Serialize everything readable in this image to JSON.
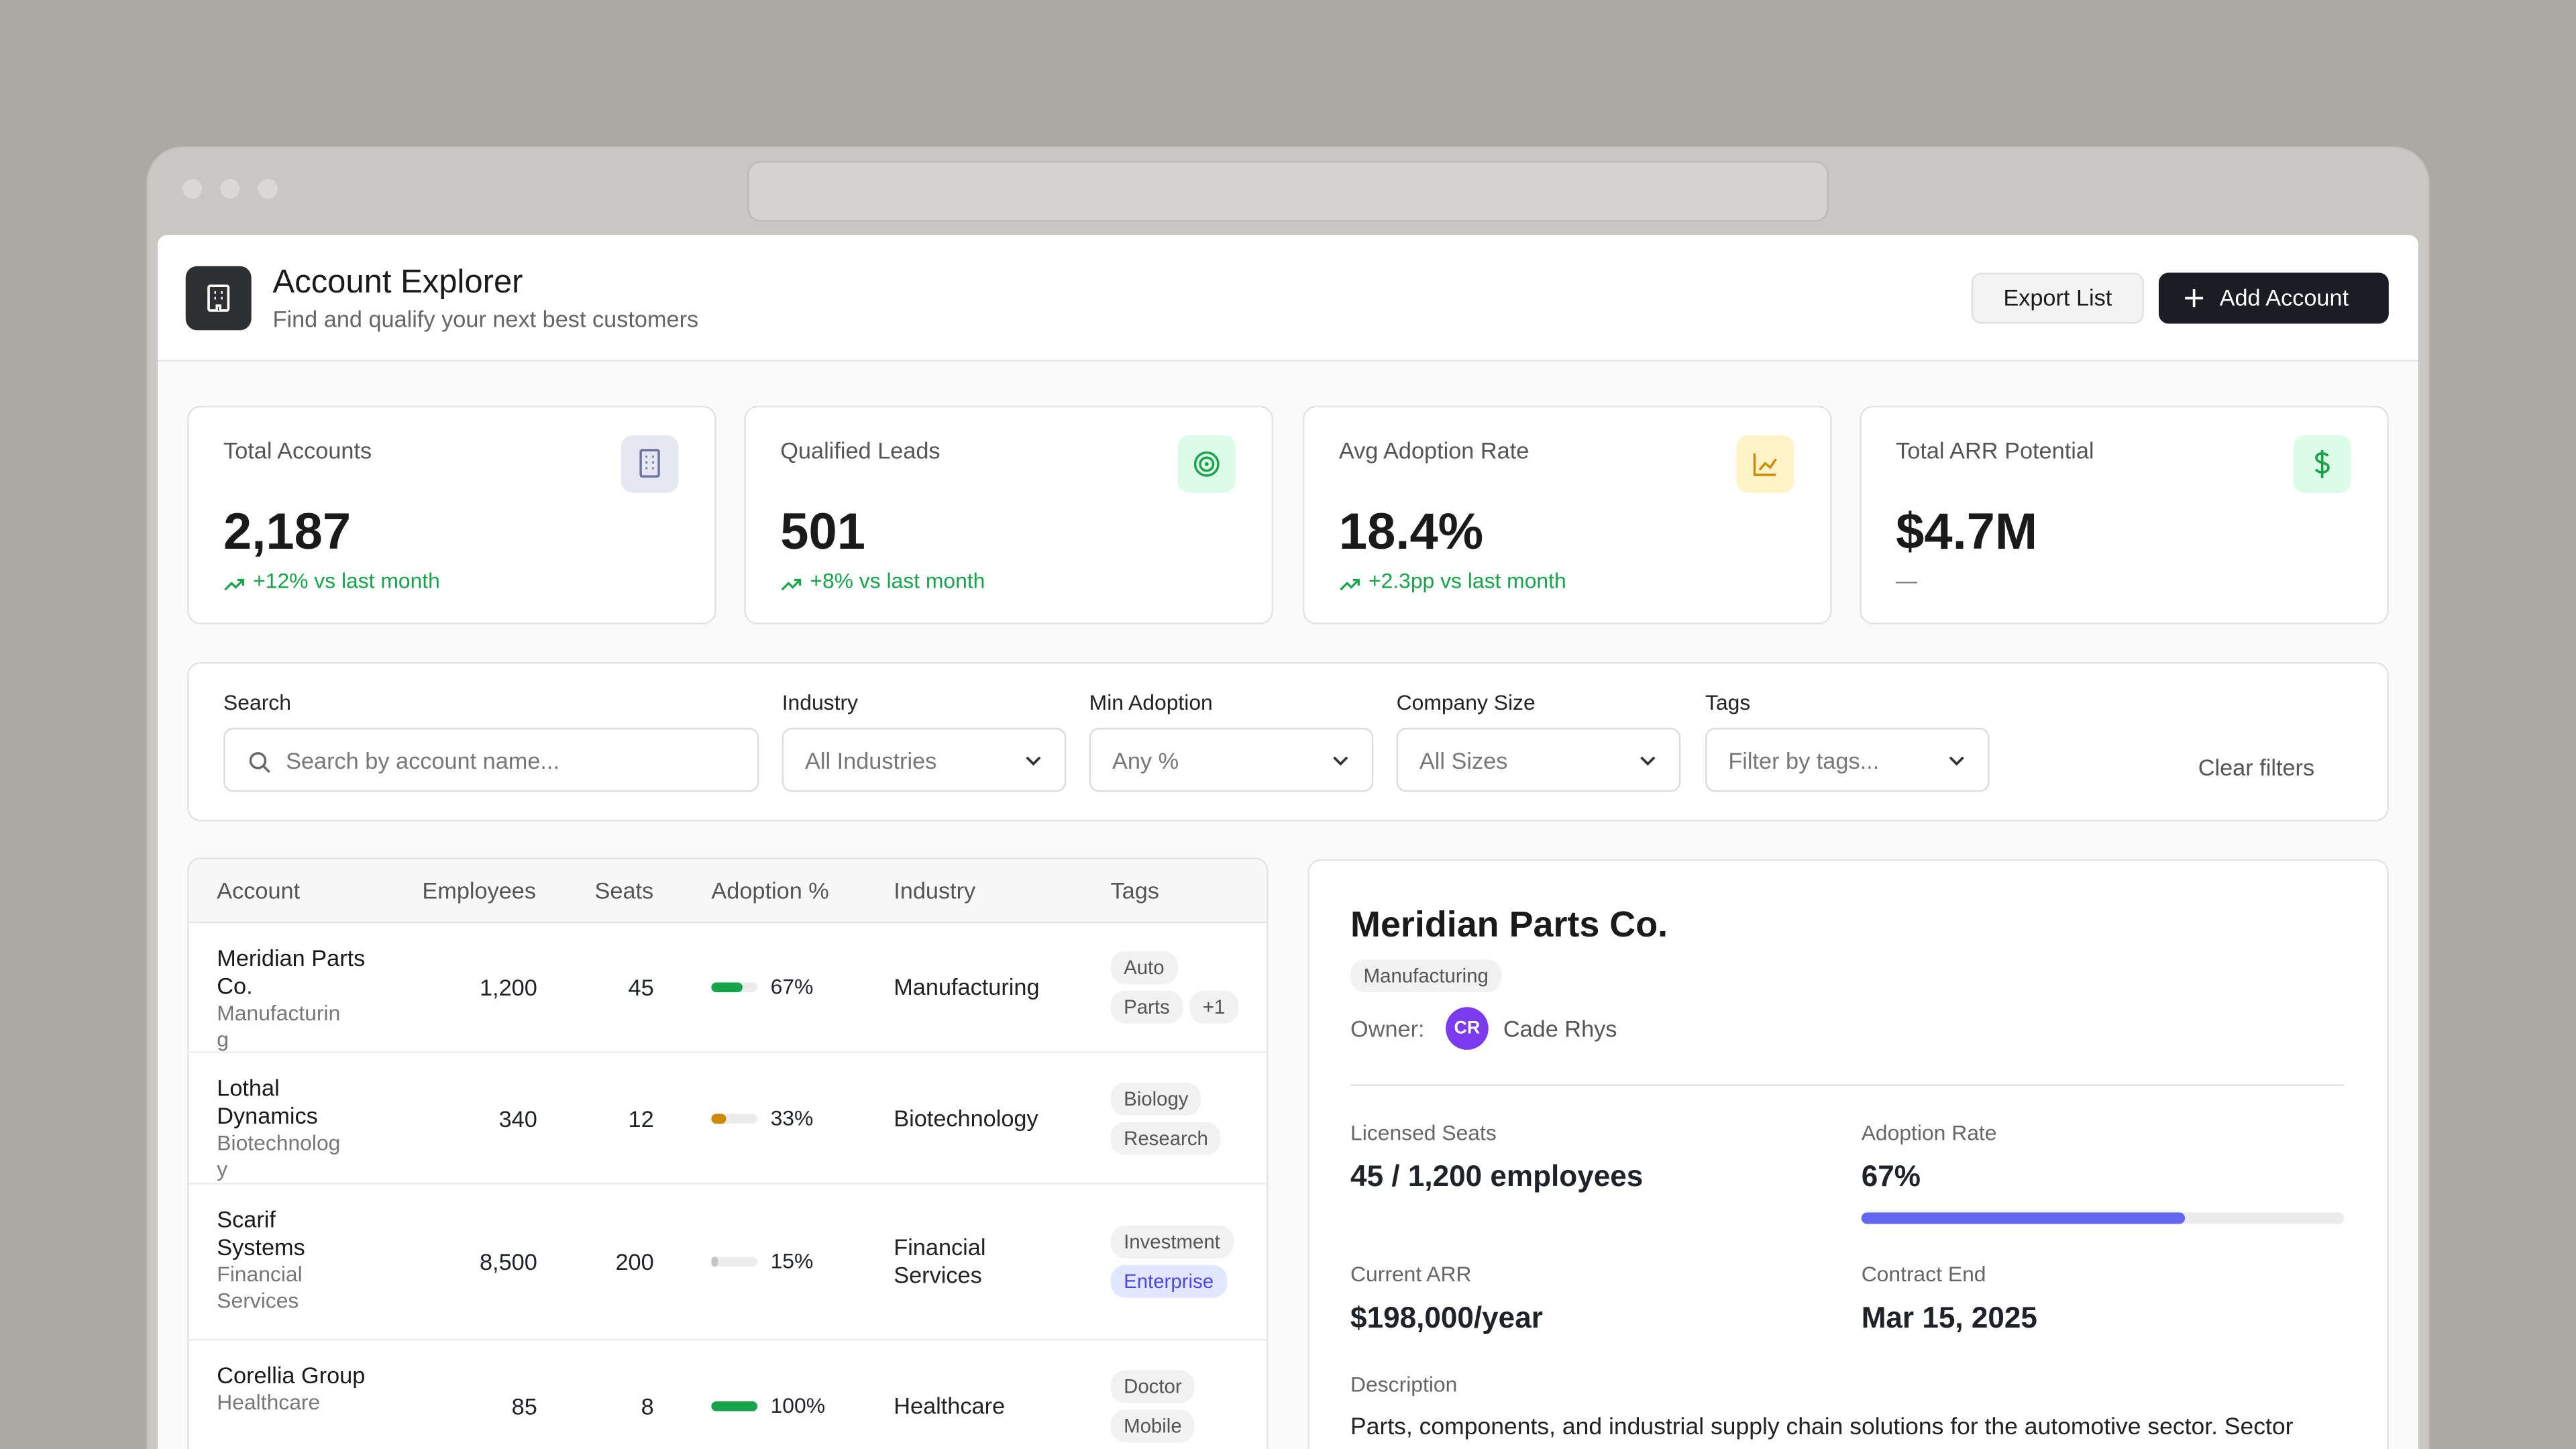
{
  "header": {
    "title": "Account Explorer",
    "subtitle": "Find and qualify your next best customers",
    "export_button": "Export List",
    "add_button": "Add Account"
  },
  "stats": [
    {
      "label": "Total Accounts",
      "value": "2,187",
      "change": "+12% vs last month",
      "icon": "building",
      "icon_color": "#6b72a0",
      "icon_bg": "#e6e8f1"
    },
    {
      "label": "Qualified Leads",
      "value": "501",
      "change": "+8% vs last month",
      "icon": "target",
      "icon_color": "#16a34a",
      "icon_bg": "#dcfce7"
    },
    {
      "label": "Avg Adoption Rate",
      "value": "18.4%",
      "change": "+2.3pp vs last month",
      "icon": "chart",
      "icon_color": "#ca8a04",
      "icon_bg": "#fef3c7"
    },
    {
      "label": "Total ARR Potential",
      "value": "$4.7M",
      "change": "—",
      "icon": "dollar",
      "icon_color": "#16a34a",
      "icon_bg": "#dcfce7"
    }
  ],
  "filters": {
    "search": {
      "label": "Search",
      "placeholder": "Search by account name..."
    },
    "industry": {
      "label": "Industry",
      "placeholder": "All Industries"
    },
    "min_adoption": {
      "label": "Min Adoption",
      "placeholder": "Any %"
    },
    "company_size": {
      "label": "Company Size",
      "placeholder": "All Sizes"
    },
    "tags": {
      "label": "Tags",
      "placeholder": "Filter by tags..."
    },
    "clear": "Clear filters"
  },
  "table": {
    "columns": [
      "Account",
      "Employees",
      "Seats",
      "Adoption %",
      "Industry",
      "Tags"
    ],
    "rows": [
      {
        "name": "Meridian Parts Co.",
        "sub": "Manufacturing",
        "employees": "1,200",
        "seats": "45",
        "adoption": {
          "value": 67,
          "label": "67%"
        },
        "adoption_color": "#16a34a",
        "industry": "Manufacturing",
        "tags": [
          {
            "text": "Auto"
          },
          {
            "text": "Parts"
          }
        ],
        "more": "+1"
      },
      {
        "name": "Lothal Dynamics",
        "sub": "Biotechnology",
        "employees": "340",
        "seats": "12",
        "adoption": {
          "value": 33,
          "label": "33%"
        },
        "adoption_color": "#ca8a04",
        "industry": "Biotechnology",
        "tags": [
          {
            "text": "Biology"
          },
          {
            "text": "Research"
          }
        ]
      },
      {
        "name": "Scarif Systems",
        "sub": "Financial Services",
        "employees": "8,500",
        "seats": "200",
        "adoption": {
          "value": 15,
          "label": "15%"
        },
        "adoption_color": "#c4c4c4",
        "industry": "Financial Services",
        "tags": [
          {
            "text": "Investment"
          },
          {
            "text": "Enterprise",
            "color": "#4f46e5"
          }
        ]
      },
      {
        "name": "Corellia Group",
        "sub": "Healthcare",
        "employees": "85",
        "seats": "8",
        "adoption": {
          "value": 100,
          "label": "100%"
        },
        "adoption_color": "#16a34a",
        "industry": "Healthcare",
        "tags": [
          {
            "text": "Doctor"
          },
          {
            "text": "Mobile"
          }
        ]
      }
    ]
  },
  "detail": {
    "name": "Meridian Parts Co.",
    "industry": "Manufacturing",
    "owner_label": "Owner:",
    "owner_initials": "CR",
    "owner_name": "Cade Rhys",
    "licensed_seats": {
      "label": "Licensed Seats",
      "value": "45 / 1,200 employees"
    },
    "adoption_rate": {
      "label": "Adoption Rate",
      "value": {
        "value": 67,
        "label": "67%"
      }
    },
    "current_arr": {
      "label": "Current ARR",
      "value": "$198,000/year"
    },
    "contract_end": {
      "label": "Contract End",
      "value": "Mar 15, 2025"
    },
    "description": {
      "label": "Description",
      "text": "Parts, components, and industrial supply chain solutions for the automotive sector. Sector"
    }
  }
}
